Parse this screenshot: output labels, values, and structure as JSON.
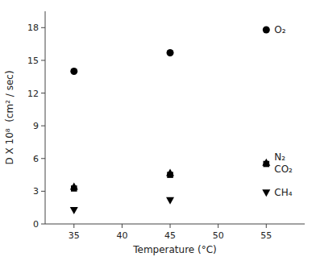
{
  "chart_data": {
    "type": "scatter",
    "x_label": "Temperature (°C)",
    "y_label": "D X 10⁸  (cm² / sec)",
    "x": [
      35,
      45,
      55
    ],
    "series": [
      {
        "name": "O₂",
        "color": "#000000",
        "marker": "circle",
        "values": [
          14.0,
          15.7,
          17.8
        ]
      },
      {
        "name": "CO₂",
        "color": "#000000",
        "marker": "square",
        "values": [
          3.25,
          4.5,
          5.5
        ]
      },
      {
        "name": "N₂",
        "color": "#000000",
        "marker": "triangle-up",
        "values": [
          3.4,
          4.65,
          5.6
        ]
      },
      {
        "name": "CH₄",
        "color": "#000000",
        "marker": "triangle-down",
        "values": [
          1.3,
          2.2,
          2.9
        ]
      }
    ],
    "xlim": [
      32,
      59
    ],
    "ylim": [
      0,
      19.5
    ],
    "xticks": [
      35,
      40,
      45,
      50,
      55
    ],
    "yticks": [
      0,
      3,
      6,
      9,
      12,
      15,
      18
    ],
    "grid": false
  }
}
